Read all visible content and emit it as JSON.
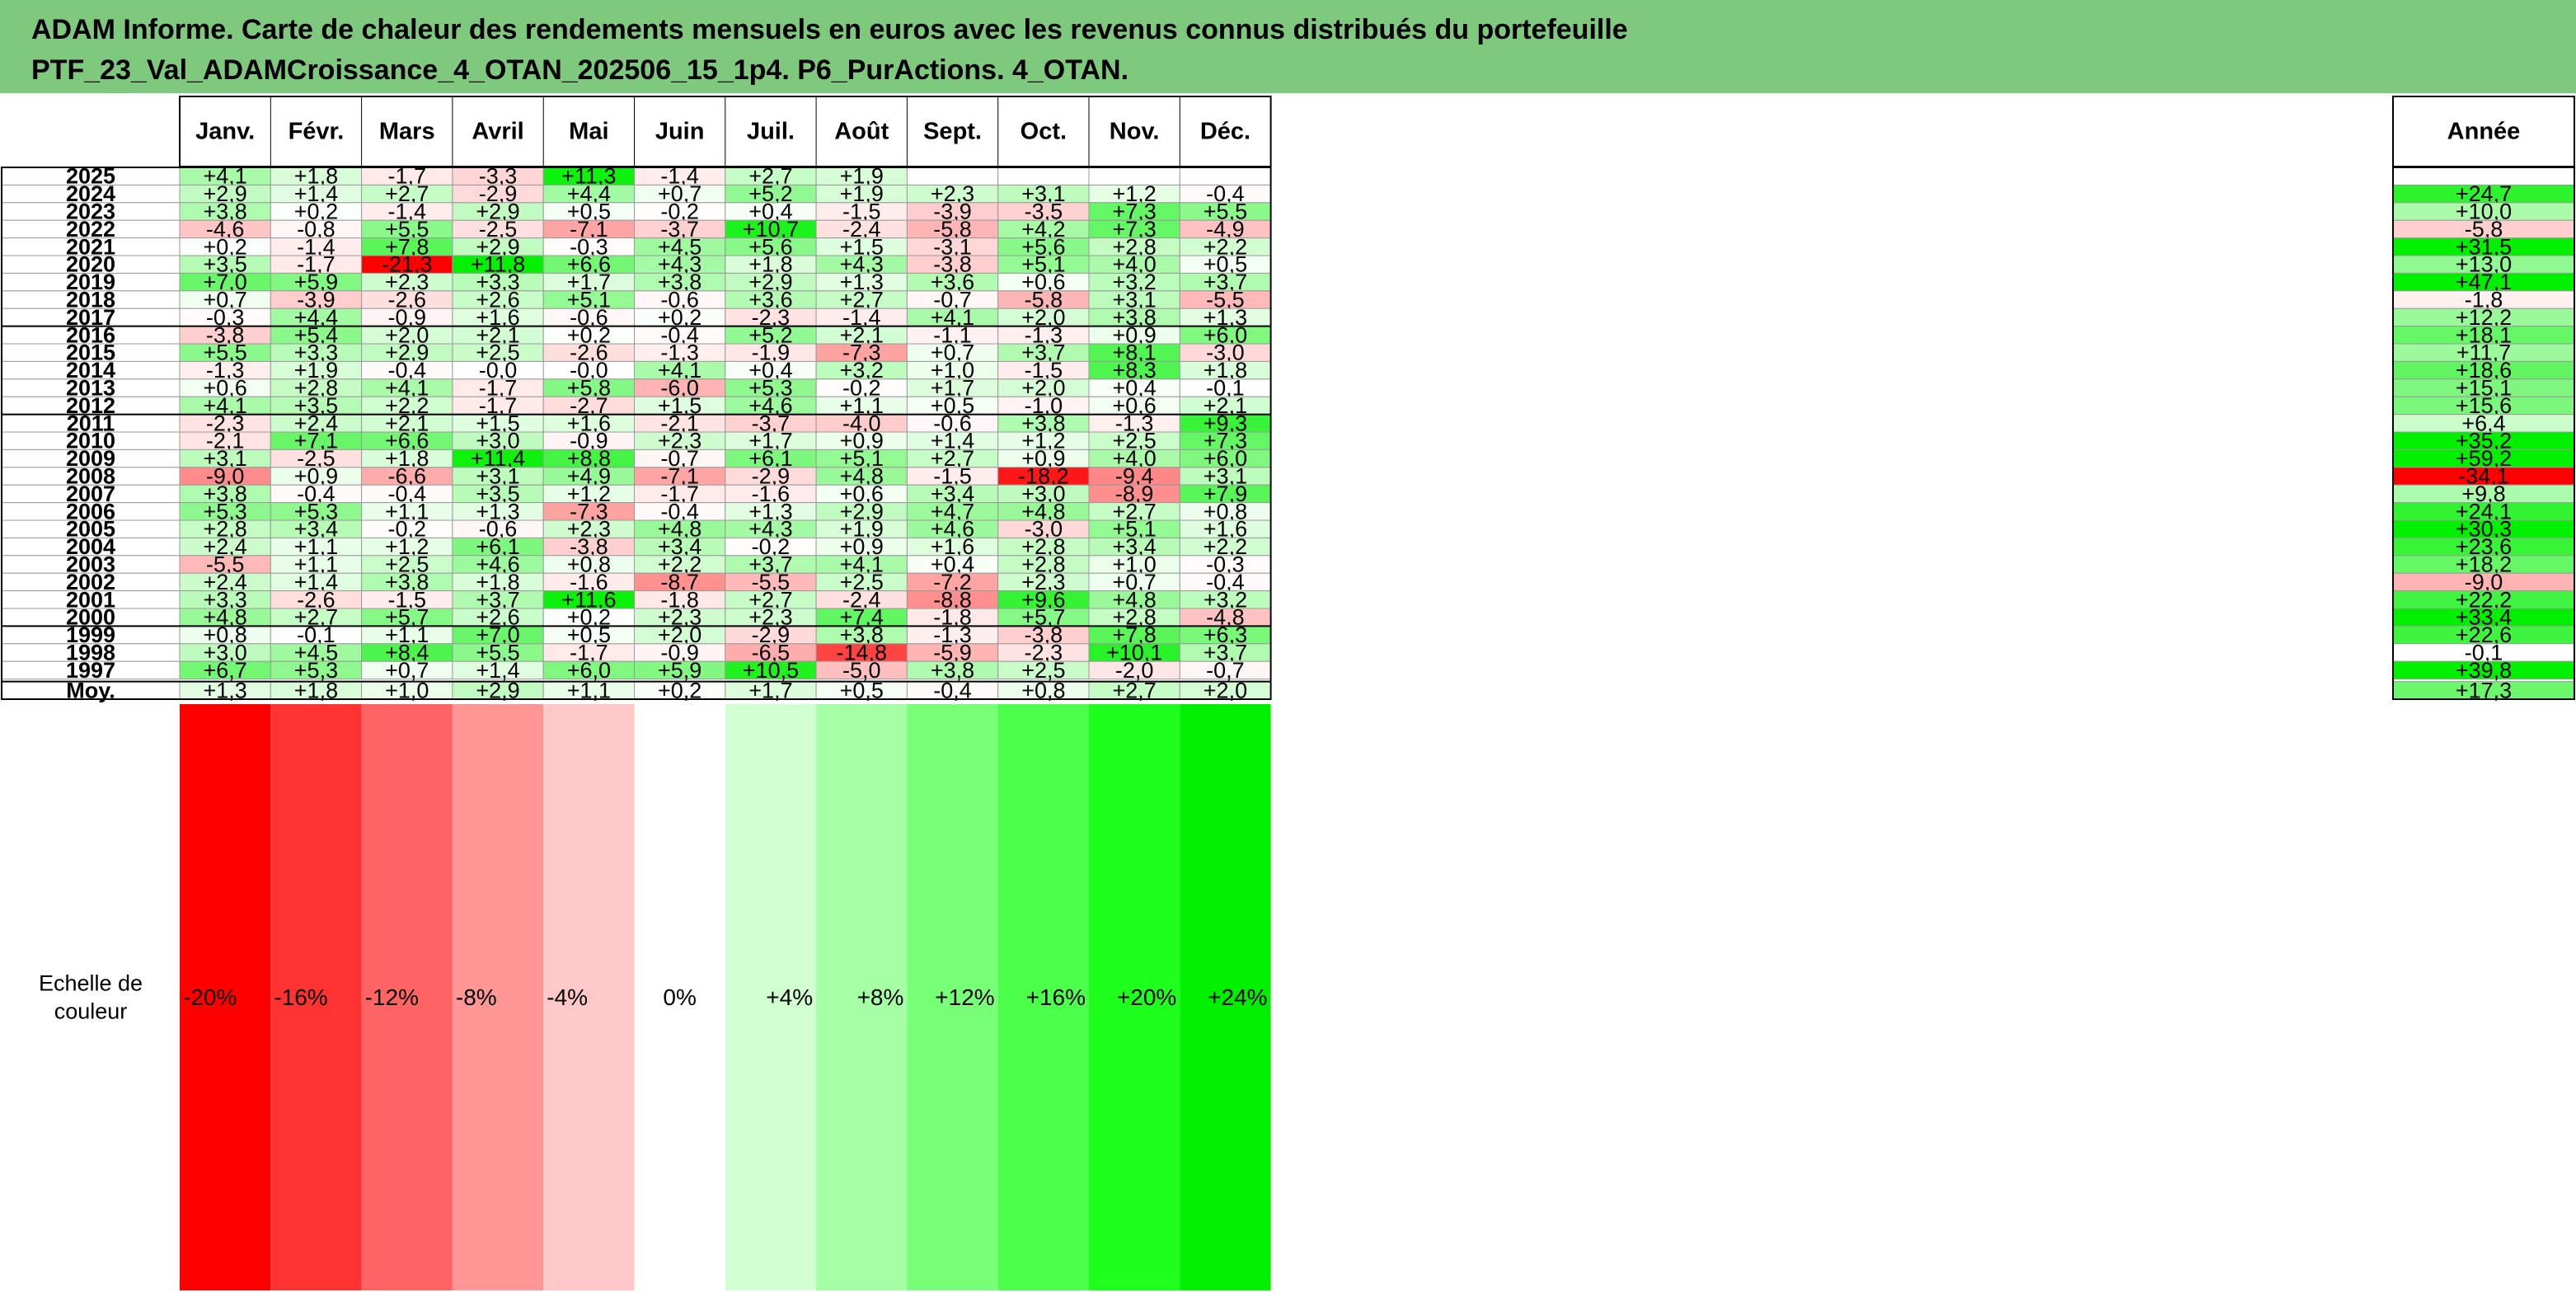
{
  "title_line1": "ADAM Informe. Carte de chaleur des rendements mensuels en euros avec les revenus connus distribués du portefeuille",
  "title_line2": "PTF_23_Val_ADAMCroissance_4_OTAN_202506_15_1p4. P6_PurActions. 4_OTAN.",
  "chart_data": {
    "type": "heatmap",
    "title": "ADAM Informe. Carte de chaleur des rendements mensuels en euros avec les revenus connus distribués du portefeuille PTF_23_Val_ADAMCroissance_4_OTAN_202506_15_1p4. P6_PurActions. 4_OTAN.",
    "columns": [
      "Janv.",
      "Févr.",
      "Mars",
      "Avril",
      "Mai",
      "Juin",
      "Juil.",
      "Août",
      "Sept.",
      "Oct.",
      "Nov.",
      "Déc."
    ],
    "year_label": "Année",
    "rows": [
      {
        "label": "2025",
        "values": [
          "+4,1",
          "+1,8",
          "-1,7",
          "-3,3",
          "+11,3",
          "-1,4",
          "+2,7",
          "+1,9",
          null,
          null,
          null,
          null
        ],
        "year": null
      },
      {
        "label": "2024",
        "values": [
          "+2,9",
          "+1,4",
          "+2,7",
          "-2,9",
          "+4,4",
          "+0,7",
          "+5,2",
          "+1,9",
          "+2,3",
          "+3,1",
          "+1,2",
          "-0,4"
        ],
        "year": "+24,7"
      },
      {
        "label": "2023",
        "values": [
          "+3,8",
          "+0,2",
          "-1,4",
          "+2,9",
          "+0,5",
          "-0,2",
          "+0,4",
          "-1,5",
          "-3,9",
          "-3,5",
          "+7,3",
          "+5,5"
        ],
        "year": "+10,0"
      },
      {
        "label": "2022",
        "values": [
          "-4,6",
          "-0,8",
          "+5,5",
          "-2,5",
          "-7,1",
          "-3,7",
          "+10,7",
          "-2,4",
          "-5,8",
          "+4,2",
          "+7,3",
          "-4,9"
        ],
        "year": "-5,8"
      },
      {
        "label": "2021",
        "values": [
          "+0,2",
          "-1,4",
          "+7,8",
          "+2,9",
          "-0,3",
          "+4,5",
          "+5,6",
          "+1,5",
          "-3,1",
          "+5,6",
          "+2,8",
          "+2,2"
        ],
        "year": "+31,5"
      },
      {
        "label": "2020",
        "values": [
          "+3,5",
          "-1,7",
          "-21,3",
          "+11,8",
          "+6,6",
          "+4,3",
          "+1,8",
          "+4,3",
          "-3,8",
          "+5,1",
          "+4,0",
          "+0,5"
        ],
        "year": "+13,0"
      },
      {
        "label": "2019",
        "values": [
          "+7,0",
          "+5,9",
          "+2,3",
          "+3,3",
          "+1,7",
          "+3,8",
          "+2,9",
          "+1,3",
          "+3,6",
          "+0,6",
          "+3,2",
          "+3,7"
        ],
        "year": "+47,1"
      },
      {
        "label": "2018",
        "values": [
          "+0,7",
          "-3,9",
          "-2,6",
          "+2,6",
          "+5,1",
          "-0,6",
          "+3,6",
          "+2,7",
          "-0,7",
          "-5,8",
          "+3,1",
          "-5,5"
        ],
        "year": "-1,8"
      },
      {
        "label": "2017",
        "values": [
          "-0,3",
          "+4,4",
          "-0,9",
          "+1,6",
          "-0,6",
          "+0,2",
          "-2,3",
          "-1,4",
          "+4,1",
          "+2,0",
          "+3,8",
          "+1,3"
        ],
        "year": "+12,2"
      },
      {
        "label": "2016",
        "values": [
          "-3,8",
          "+5,4",
          "+2,0",
          "+2,1",
          "+0,2",
          "-0,4",
          "+5,2",
          "+2,1",
          "-1,1",
          "-1,3",
          "+0,9",
          "+6,0"
        ],
        "year": "+18,1"
      },
      {
        "label": "2015",
        "values": [
          "+5,5",
          "+3,3",
          "+2,9",
          "+2,5",
          "-2,6",
          "-1,3",
          "-1,9",
          "-7,3",
          "+0,7",
          "+3,7",
          "+8,1",
          "-3,0"
        ],
        "year": "+11,7"
      },
      {
        "label": "2014",
        "values": [
          "-1,3",
          "+1,9",
          "-0,4",
          "-0,0",
          "-0,0",
          "+4,1",
          "+0,4",
          "+3,2",
          "+1,0",
          "-1,5",
          "+8,3",
          "+1,8"
        ],
        "year": "+18,6"
      },
      {
        "label": "2013",
        "values": [
          "+0,6",
          "+2,8",
          "+4,1",
          "-1,7",
          "+5,8",
          "-6,0",
          "+5,3",
          "-0,2",
          "+1,7",
          "+2,0",
          "+0,4",
          "-0,1"
        ],
        "year": "+15,1"
      },
      {
        "label": "2012",
        "values": [
          "+4,1",
          "+3,5",
          "+2,2",
          "-1,7",
          "-2,7",
          "+1,5",
          "+4,6",
          "+1,1",
          "+0,5",
          "-1,0",
          "+0,6",
          "+2,1"
        ],
        "year": "+15,6"
      },
      {
        "label": "2011",
        "values": [
          "-2,3",
          "+2,4",
          "+2,1",
          "+1,5",
          "+1,6",
          "-2,1",
          "-3,7",
          "-4,0",
          "-0,6",
          "+3,8",
          "-1,3",
          "+9,3"
        ],
        "year": "+6,4"
      },
      {
        "label": "2010",
        "values": [
          "-2,1",
          "+7,1",
          "+6,6",
          "+3,0",
          "-0,9",
          "+2,3",
          "+1,7",
          "+0,9",
          "+1,4",
          "+1,2",
          "+2,5",
          "+7,3"
        ],
        "year": "+35,2"
      },
      {
        "label": "2009",
        "values": [
          "+3,1",
          "-2,5",
          "+1,8",
          "+11,4",
          "+8,8",
          "-0,7",
          "+6,1",
          "+5,1",
          "+2,7",
          "+0,9",
          "+4,0",
          "+6,0"
        ],
        "year": "+59,2"
      },
      {
        "label": "2008",
        "values": [
          "-9,0",
          "+0,9",
          "-6,6",
          "+3,1",
          "+4,9",
          "-7,1",
          "-2,9",
          "+4,8",
          "-1,5",
          "-18,2",
          "-9,4",
          "+3,1"
        ],
        "year": "-34,1"
      },
      {
        "label": "2007",
        "values": [
          "+3,8",
          "-0,4",
          "-0,4",
          "+3,5",
          "+1,2",
          "-1,7",
          "-1,6",
          "+0,6",
          "+3,4",
          "+3,0",
          "-8,9",
          "+7,9"
        ],
        "year": "+9,8"
      },
      {
        "label": "2006",
        "values": [
          "+5,3",
          "+5,3",
          "+1,1",
          "+1,3",
          "-7,3",
          "-0,4",
          "+1,3",
          "+2,9",
          "+4,7",
          "+4,8",
          "+2,7",
          "+0,8"
        ],
        "year": "+24,1"
      },
      {
        "label": "2005",
        "values": [
          "+2,8",
          "+3,4",
          "-0,2",
          "-0,6",
          "+2,3",
          "+4,8",
          "+4,3",
          "+1,9",
          "+4,6",
          "-3,0",
          "+5,1",
          "+1,6"
        ],
        "year": "+30,3"
      },
      {
        "label": "2004",
        "values": [
          "+2,4",
          "+1,1",
          "+1,2",
          "+6,1",
          "-3,8",
          "+3,4",
          "-0,2",
          "+0,9",
          "+1,6",
          "+2,8",
          "+3,4",
          "+2,2"
        ],
        "year": "+23,6"
      },
      {
        "label": "2003",
        "values": [
          "-5,5",
          "+1,1",
          "+2,5",
          "+4,6",
          "+0,8",
          "+2,2",
          "+3,7",
          "+4,1",
          "+0,4",
          "+2,8",
          "+1,0",
          "-0,3"
        ],
        "year": "+18,2"
      },
      {
        "label": "2002",
        "values": [
          "+2,4",
          "+1,4",
          "+3,8",
          "+1,8",
          "-1,6",
          "-8,7",
          "-5,5",
          "+2,5",
          "-7,2",
          "+2,3",
          "+0,7",
          "-0,4"
        ],
        "year": "-9,0"
      },
      {
        "label": "2001",
        "values": [
          "+3,3",
          "-2,6",
          "-1,5",
          "+3,7",
          "+11,6",
          "-1,8",
          "+2,7",
          "-2,4",
          "-8,8",
          "+9,6",
          "+4,8",
          "+3,2"
        ],
        "year": "+22,2"
      },
      {
        "label": "2000",
        "values": [
          "+4,8",
          "+2,7",
          "+5,7",
          "+2,6",
          "+0,2",
          "+2,3",
          "+2,3",
          "+7,4",
          "-1,8",
          "+5,7",
          "+2,8",
          "-4,8"
        ],
        "year": "+33,4"
      },
      {
        "label": "1999",
        "values": [
          "+0,8",
          "-0,1",
          "+1,1",
          "+7,0",
          "+0,5",
          "+2,0",
          "-2,9",
          "+3,8",
          "-1,3",
          "-3,8",
          "+7,8",
          "+6,3"
        ],
        "year": "+22,6"
      },
      {
        "label": "1998",
        "values": [
          "+3,0",
          "+4,5",
          "+8,4",
          "+5,5",
          "-1,7",
          "-0,9",
          "-6,5",
          "-14,8",
          "-5,9",
          "-2,3",
          "+10,1",
          "+3,7"
        ],
        "year": "-0,1"
      },
      {
        "label": "1997",
        "values": [
          "+6,7",
          "+5,3",
          "+0,7",
          "+1,4",
          "+6,0",
          "+5,9",
          "+10,5",
          "-5,0",
          "+3,8",
          "+2,5",
          "-2,0",
          "-0,7"
        ],
        "year": "+39,8"
      }
    ],
    "average_row": {
      "label": "Moy.",
      "values": [
        "+1,3",
        "+1,8",
        "+1,0",
        "+2,9",
        "+1,1",
        "+0,2",
        "+1,7",
        "+0,5",
        "-0,4",
        "+0,8",
        "+2,7",
        "+2,0"
      ],
      "year": "+17,3"
    },
    "scale": {
      "label_line1": "Echelle de",
      "label_line2": "couleur",
      "steps": [
        {
          "label": "-20%",
          "color": "#ff0000"
        },
        {
          "label": "-16%",
          "color": "#ff3232"
        },
        {
          "label": "-12%",
          "color": "#ff6464"
        },
        {
          "label": "-8%",
          "color": "#ff9696"
        },
        {
          "label": "-4%",
          "color": "#ffc8c8"
        },
        {
          "label": "0%",
          "color": "#ffffff"
        },
        {
          "label": "+4%",
          "color": "#d2ffd2"
        },
        {
          "label": "+8%",
          "color": "#a5ffa5"
        },
        {
          "label": "+12%",
          "color": "#78ff78"
        },
        {
          "label": "+16%",
          "color": "#4bff4b"
        },
        {
          "label": "+20%",
          "color": "#1eff1e"
        },
        {
          "label": "+24%",
          "color": "#00f000"
        }
      ]
    }
  }
}
